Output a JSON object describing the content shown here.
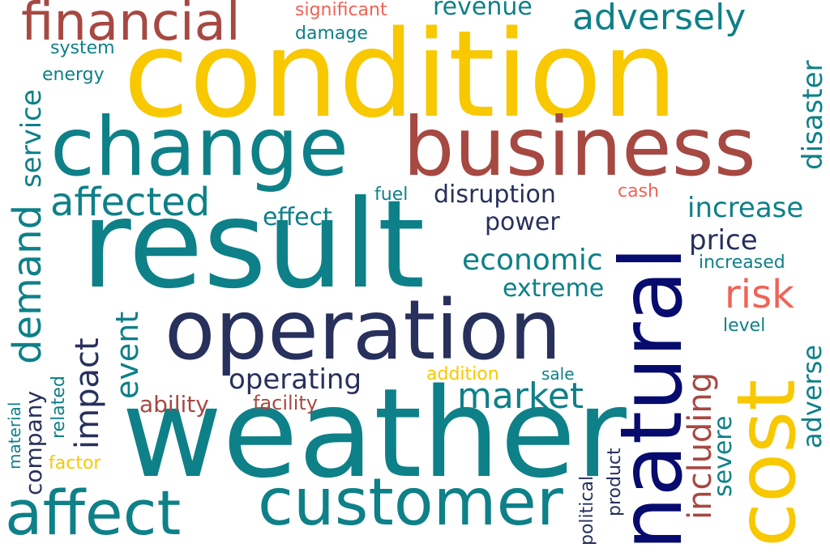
{
  "colors": {
    "teal": "#0e8088",
    "gold": "#f8c800",
    "brick": "#a64942",
    "navy": "#28305c",
    "darknavy": "#070b6e",
    "salmon": "#f06355"
  },
  "words": {
    "condition": "condition",
    "weather": "weather",
    "result": "result",
    "operation": "operation",
    "business": "business",
    "change": "change",
    "customer": "customer",
    "affect": "affect",
    "natural": "natural",
    "cost": "cost",
    "financial": "financial",
    "adversely": "adversely",
    "affected": "affected",
    "demand": "demand",
    "service": "service",
    "disaster": "disaster",
    "disruption": "disruption",
    "increase": "increase",
    "price": "price",
    "economic": "economic",
    "market": "market",
    "operating": "operating",
    "impact": "impact",
    "event": "event",
    "including": "including",
    "adverse": "adverse",
    "severe": "severe",
    "risk": "risk",
    "extreme": "extreme",
    "power": "power",
    "effect": "effect",
    "revenue": "revenue",
    "significant": "significant",
    "damage": "damage",
    "system": "system",
    "energy": "energy",
    "fuel": "fuel",
    "cash": "cash",
    "increased": "increased",
    "level": "level",
    "ability": "ability",
    "facility": "facility",
    "addition": "addition",
    "sale": "sale",
    "company": "company",
    "related": "related",
    "material": "material",
    "factor": "factor",
    "political": "political",
    "product": "product"
  }
}
